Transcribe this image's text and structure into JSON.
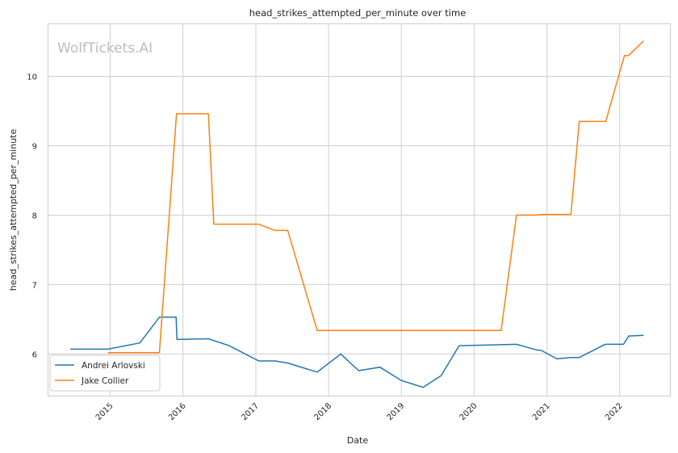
{
  "chart_data": {
    "type": "line",
    "title": "head_strikes_attempted_per_minute over time",
    "xlabel": "Date",
    "ylabel": "head_strikes_attempted_per_minute",
    "watermark": "WolfTickets.AI",
    "x_ticks": [
      "2015",
      "2016",
      "2017",
      "2018",
      "2019",
      "2020",
      "2021",
      "2022"
    ],
    "y_ticks": [
      6,
      7,
      8,
      9,
      10
    ],
    "xlim": [
      "2014-02-25",
      "2022-09-10"
    ],
    "ylim": [
      5.4,
      10.75
    ],
    "grid": true,
    "legend_position": "lower-left",
    "colors": {
      "arlovski": "#1f77b4",
      "collier": "#ff7f0e"
    },
    "series": [
      {
        "name": "Andrei Arlovski",
        "color": "#1f77b4",
        "points": [
          [
            "2014-06-14",
            6.07
          ],
          [
            "2014-12-20",
            6.07
          ],
          [
            "2015-05-30",
            6.16
          ],
          [
            "2015-09-05",
            6.53
          ],
          [
            "2015-11-28",
            6.53
          ],
          [
            "2015-12-02",
            6.21
          ],
          [
            "2016-05-08",
            6.22
          ],
          [
            "2016-08-20",
            6.12
          ],
          [
            "2017-01-15",
            5.9
          ],
          [
            "2017-04-08",
            5.9
          ],
          [
            "2017-06-10",
            5.87
          ],
          [
            "2017-11-05",
            5.74
          ],
          [
            "2018-03-03",
            6.0
          ],
          [
            "2018-06-01",
            5.76
          ],
          [
            "2018-09-15",
            5.81
          ],
          [
            "2019-01-01",
            5.62
          ],
          [
            "2019-04-20",
            5.52
          ],
          [
            "2019-07-20",
            5.69
          ],
          [
            "2019-10-18",
            6.12
          ],
          [
            "2020-08-01",
            6.14
          ],
          [
            "2020-11-10",
            6.06
          ],
          [
            "2020-12-05",
            6.05
          ],
          [
            "2021-02-20",
            5.93
          ],
          [
            "2021-05-01",
            5.95
          ],
          [
            "2021-06-12",
            5.95
          ],
          [
            "2021-10-20",
            6.14
          ],
          [
            "2022-01-20",
            6.14
          ],
          [
            "2022-02-15",
            6.26
          ],
          [
            "2022-05-01",
            6.27
          ]
        ]
      },
      {
        "name": "Jake Collier",
        "color": "#ff7f0e",
        "points": [
          [
            "2014-12-20",
            6.02
          ],
          [
            "2015-09-05",
            6.02
          ],
          [
            "2015-11-30",
            9.46
          ],
          [
            "2016-05-08",
            9.46
          ],
          [
            "2016-06-04",
            7.87
          ],
          [
            "2017-01-15",
            7.87
          ],
          [
            "2017-04-08",
            7.78
          ],
          [
            "2017-06-10",
            7.78
          ],
          [
            "2017-11-05",
            6.34
          ],
          [
            "2020-05-16",
            6.34
          ],
          [
            "2020-08-01",
            8.0
          ],
          [
            "2020-11-07",
            8.0
          ],
          [
            "2020-12-05",
            8.01
          ],
          [
            "2021-05-01",
            8.01
          ],
          [
            "2021-06-12",
            9.35
          ],
          [
            "2021-10-23",
            9.35
          ],
          [
            "2022-01-25",
            10.3
          ],
          [
            "2022-02-15",
            10.3
          ],
          [
            "2022-05-01",
            10.51
          ]
        ]
      }
    ]
  }
}
